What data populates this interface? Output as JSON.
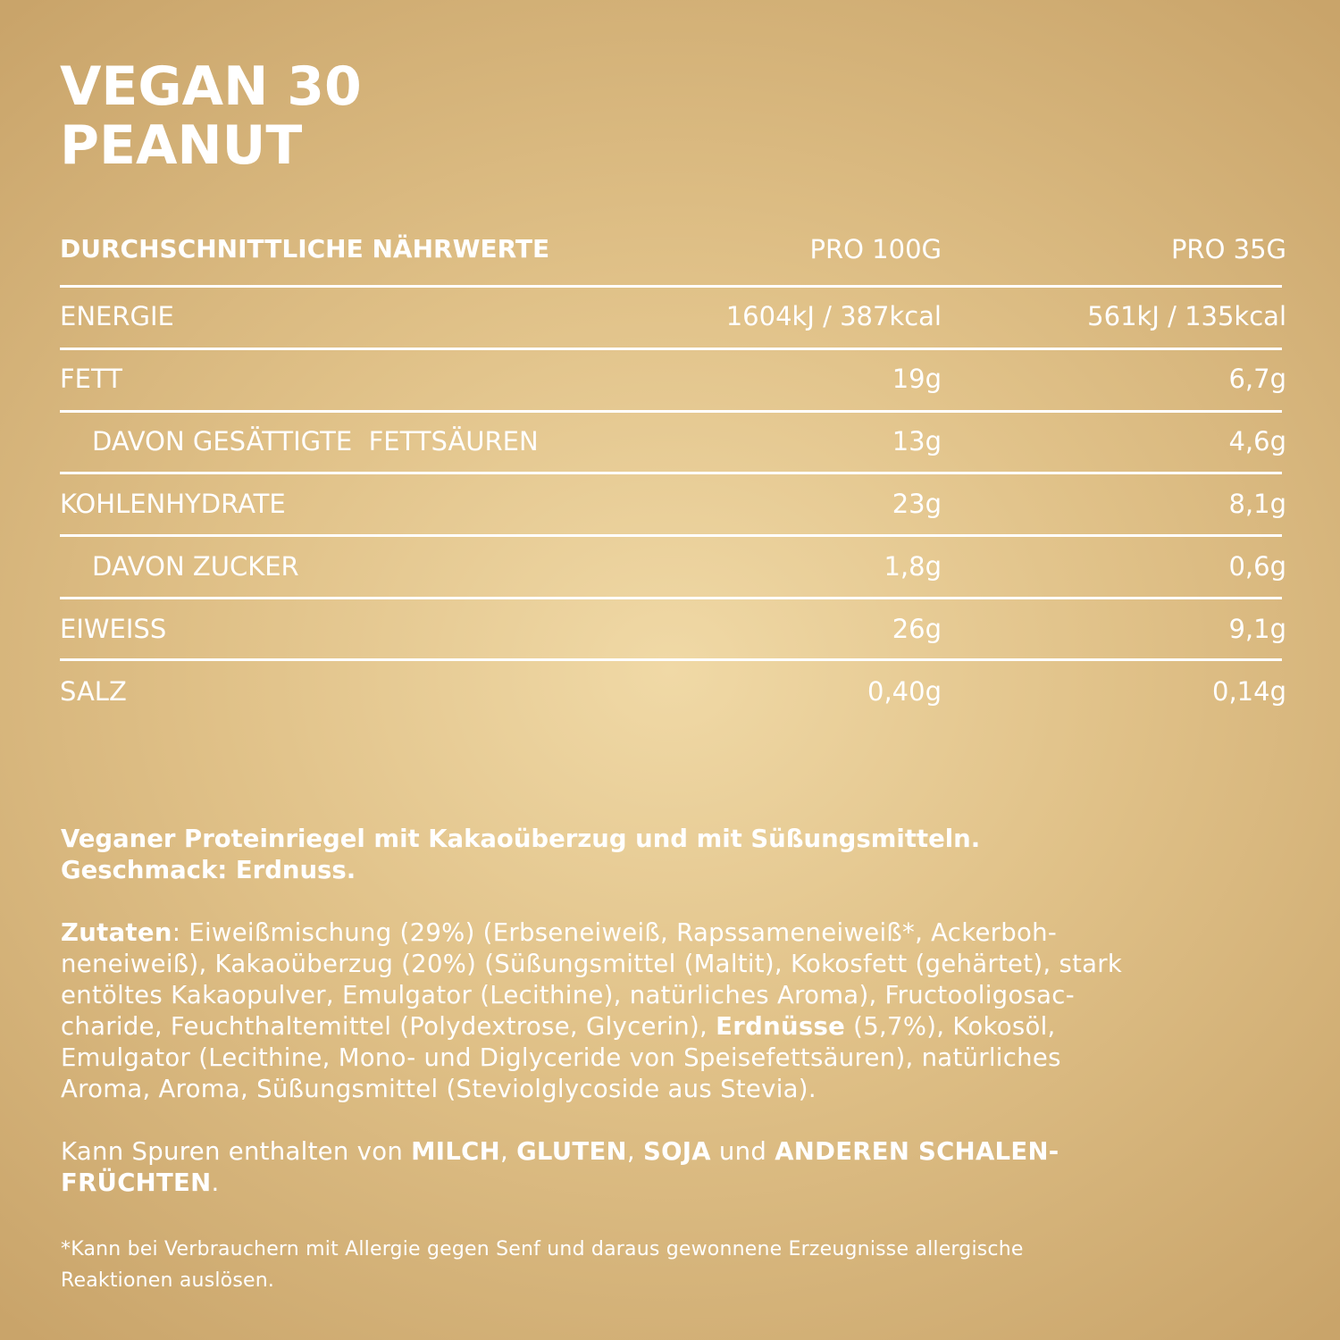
{
  "product": {
    "title_line1": "VEGAN 30",
    "title_line2": "PEANUT"
  },
  "nutrition": {
    "header": {
      "label": "DURCHSCHNITTLICHE NÄHRWERTE",
      "per_100g": "PRO 100G",
      "per_35g": "PRO 35G"
    },
    "rows": [
      {
        "label": "ENERGIE",
        "per_100g": "1604kJ / 387kcal",
        "per_35g": "561kJ / 135kcal",
        "sub": false
      },
      {
        "label": "FETT",
        "per_100g": "19g",
        "per_35g": "6,7g",
        "sub": false
      },
      {
        "label": "DAVON GESÄTTIGTE  FETTSÄUREN",
        "per_100g": "13g",
        "per_35g": "4,6g",
        "sub": true
      },
      {
        "label": "KOHLENHYDRATE",
        "per_100g": "23g",
        "per_35g": "8,1g",
        "sub": false
      },
      {
        "label": "DAVON ZUCKER",
        "per_100g": "1,8g",
        "per_35g": "0,6g",
        "sub": true
      },
      {
        "label": "EIWEISS",
        "per_100g": "26g",
        "per_35g": "9,1g",
        "sub": false
      },
      {
        "label": "SALZ",
        "per_100g": "0,40g",
        "per_35g": "0,14g",
        "sub": false
      }
    ]
  },
  "description": {
    "line1": "Veganer Proteinriegel mit Kakaoüberzug und mit Süßungsmitteln.",
    "line2": "Geschmack: Erdnuss."
  },
  "ingredients": {
    "label": "Zutaten",
    "l1": ": Eiweißmischung (29%) (Erbseneiweiß, Rapssameneiweiß*, Ackerboh-",
    "l2": "neneiweiß), Kakaoüberzug (20%) (Süßungsmittel (Maltit), Kokosfett (gehärtet), stark",
    "l3": "entöltes Kakaopulver, Emulgator (Lecithine), natürliches Aroma), Fructooligosac-",
    "l4a": "charide, Feuchthaltemittel (Polydextrose, Glycerin), ",
    "l4_bold": "Erdnüsse",
    "l4b": " (5,7%), Kokosöl,",
    "l5": "Emulgator (Lecithine, Mono- und Diglyceride von Speisefettsäuren), natürliches",
    "l6": "Aroma, Aroma, Süßungsmittel (Steviolglycoside aus Stevia)."
  },
  "traces": {
    "prefix": "Kann Spuren enthalten von ",
    "a1": "MILCH",
    "sep1": ", ",
    "a2": "GLUTEN",
    "sep2": ", ",
    "a3": "SOJA",
    "sep3": " und ",
    "a4": "ANDEREN SCHALEN-",
    "a4_line2": "FRÜCHTEN",
    "end": "."
  },
  "footnote": {
    "line1": "*Kann bei Verbrauchern mit Allergie gegen Senf und daraus gewonnene Erzeugnisse allergische",
    "line2": "Reaktionen auslösen."
  }
}
